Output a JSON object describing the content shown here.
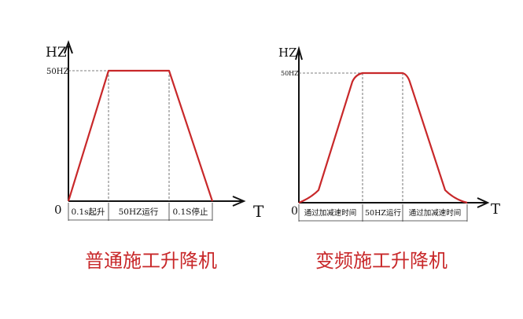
{
  "colors": {
    "curve": "#c8282a",
    "title": "#c8282a"
  },
  "left": {
    "y_label": "HZ",
    "x_label": "T",
    "origin": "0",
    "level_label": "50HZ",
    "segments": [
      "0.1s起升",
      "50HZ运行",
      "0.1S停止"
    ],
    "title": "普通施工升降机"
  },
  "right": {
    "y_label": "HZ",
    "x_label": "T",
    "origin": "0",
    "level_label": "50HZ",
    "segments": [
      "通过加减速时间",
      "50HZ运行",
      "通过加减速时间"
    ],
    "title": "变频施工升降机"
  }
}
